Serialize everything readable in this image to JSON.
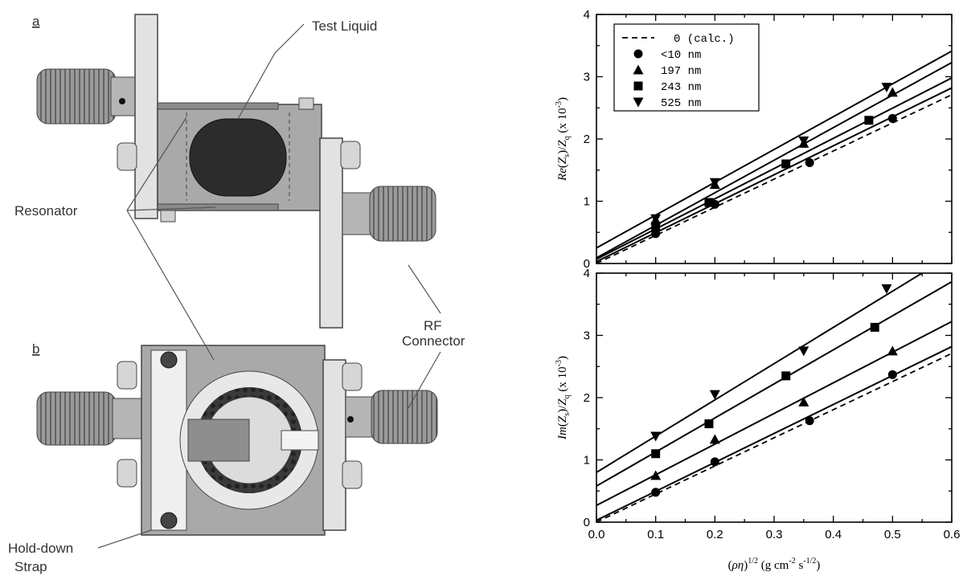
{
  "diagram": {
    "panel_a": "a",
    "panel_b": "b",
    "test_liquid": "Test  Liquid",
    "resonator": "Resonator",
    "rf_connector_1": "RF",
    "rf_connector_2": "Connector",
    "hold_down_1": "Hold-down",
    "hold_down_2": "Strap"
  },
  "chart_data": [
    {
      "type": "scatter",
      "ylabel": "Re(Z_s)/Z_q  (x 10^-3)",
      "xlim": [
        0.0,
        0.6
      ],
      "ylim": [
        0,
        4
      ],
      "xticks": [
        "0.0",
        "0.1",
        "0.2",
        "0.3",
        "0.4",
        "0.5",
        "0.6"
      ],
      "yticks": [
        "0",
        "1",
        "2",
        "3",
        "4"
      ],
      "legend_position": "top-left",
      "legend": [
        "0 (calc.)",
        "<10 nm",
        "197 nm",
        "243 nm",
        "525 nm"
      ],
      "calc_line": {
        "x": [
          0.0,
          0.6
        ],
        "y": [
          0.0,
          2.71
        ]
      },
      "series": [
        {
          "name": "<10 nm",
          "marker": "circle",
          "x": [
            0.1,
            0.2,
            0.36,
            0.5
          ],
          "y": [
            0.48,
            0.95,
            1.62,
            2.33
          ],
          "fit": [
            0.03,
            4.65
          ]
        },
        {
          "name": "197 nm",
          "marker": "triangle-up",
          "x": [
            0.1,
            0.2,
            0.35,
            0.5
          ],
          "y": [
            0.7,
            1.27,
            1.93,
            2.75
          ],
          "fit": [
            0.09,
            5.23
          ]
        },
        {
          "name": "243 nm",
          "marker": "square",
          "x": [
            0.1,
            0.19,
            0.32,
            0.46
          ],
          "y": [
            0.6,
            0.98,
            1.6,
            2.3
          ],
          "fit": [
            0.07,
            4.85
          ]
        },
        {
          "name": "525 nm",
          "marker": "triangle-down",
          "x": [
            0.1,
            0.2,
            0.35,
            0.49
          ],
          "y": [
            0.72,
            1.3,
            1.97,
            2.83
          ],
          "fit": [
            0.25,
            5.27
          ]
        }
      ]
    },
    {
      "type": "scatter",
      "ylabel": "Im(Z_s)/Z_q  (x 10^-3)",
      "xlabel": "(ρη)^1/2  (g cm^-2 s^-1/2)",
      "xlim": [
        0.0,
        0.6
      ],
      "ylim": [
        0,
        4
      ],
      "xticks": [
        "0.0",
        "0.1",
        "0.2",
        "0.3",
        "0.4",
        "0.5",
        "0.6"
      ],
      "yticks": [
        "0",
        "1",
        "2",
        "3",
        "4"
      ],
      "calc_line": {
        "x": [
          0.0,
          0.6
        ],
        "y": [
          0.0,
          2.71
        ]
      },
      "series": [
        {
          "name": "<10 nm",
          "marker": "circle",
          "x": [
            0.1,
            0.2,
            0.36,
            0.5
          ],
          "y": [
            0.48,
            0.97,
            1.63,
            2.37
          ],
          "fit": [
            0.03,
            4.65
          ]
        },
        {
          "name": "197 nm",
          "marker": "triangle-up",
          "x": [
            0.1,
            0.2,
            0.35,
            0.5
          ],
          "y": [
            0.75,
            1.33,
            1.93,
            2.75
          ],
          "fit": [
            0.27,
            4.92
          ]
        },
        {
          "name": "243 nm",
          "marker": "square",
          "x": [
            0.1,
            0.19,
            0.32,
            0.47
          ],
          "y": [
            1.1,
            1.58,
            2.35,
            3.13
          ],
          "fit": [
            0.58,
            5.47
          ]
        },
        {
          "name": "525 nm",
          "marker": "triangle-down",
          "x": [
            0.1,
            0.2,
            0.35,
            0.49
          ],
          "y": [
            1.38,
            2.05,
            2.75,
            3.75
          ],
          "fit": [
            0.8,
            5.82
          ]
        }
      ]
    }
  ]
}
